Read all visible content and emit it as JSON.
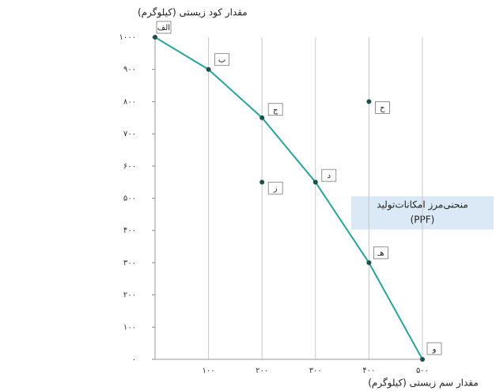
{
  "chart_data": {
    "type": "line",
    "y_title": "مقدار کود زیستی (کیلوگرم)",
    "x_title": "مقدار سم زیستی (کیلوگرم)",
    "annotation": [
      "منحنی‌مرز امکانات‌تولید",
      "(PPF)"
    ],
    "x": [
      0,
      100,
      200,
      300,
      400,
      500
    ],
    "values": [
      1000,
      900,
      750,
      550,
      300,
      0
    ],
    "point_labels": [
      "الف",
      "ب",
      "ج",
      "د",
      "هـ",
      "و"
    ],
    "color": "#2aa39a",
    "point_color": "#1f4f4b",
    "extra_points": {
      "x": [
        200,
        400
      ],
      "values": [
        550,
        800
      ],
      "point_labels": [
        "ز",
        "ح"
      ]
    },
    "xlim": [
      0,
      500
    ],
    "ylim": [
      0,
      1000
    ],
    "xticks": [
      {
        "value": 100,
        "label": "۱۰۰"
      },
      {
        "value": 200,
        "label": "۲۰۰"
      },
      {
        "value": 300,
        "label": "۳۰۰"
      },
      {
        "value": 400,
        "label": "۴۰۰"
      },
      {
        "value": 500,
        "label": "۵۰۰"
      }
    ],
    "yticks": [
      {
        "value": 0,
        "label": "۰"
      },
      {
        "value": 100,
        "label": "۱۰۰"
      },
      {
        "value": 200,
        "label": "۲۰۰"
      },
      {
        "value": 300,
        "label": "۳۰۰"
      },
      {
        "value": 400,
        "label": "۴۰۰"
      },
      {
        "value": 500,
        "label": "۵۰۰"
      },
      {
        "value": 600,
        "label": "۶۰۰"
      },
      {
        "value": 700,
        "label": "۷۰۰"
      },
      {
        "value": 800,
        "label": "۸۰۰"
      },
      {
        "value": 900,
        "label": "۹۰۰"
      },
      {
        "value": 1000,
        "label": "۱۰۰۰"
      }
    ],
    "grid": true
  }
}
